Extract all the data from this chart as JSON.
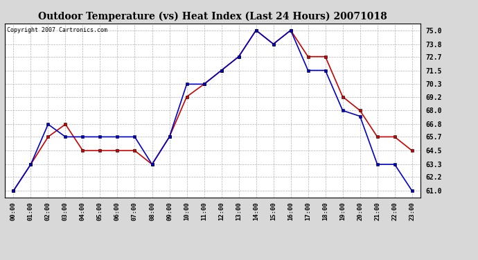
{
  "title": "Outdoor Temperature (vs) Heat Index (Last 24 Hours) 20071018",
  "copyright": "Copyright 2007 Cartronics.com",
  "x_labels": [
    "00:00",
    "01:00",
    "02:00",
    "03:00",
    "04:00",
    "05:00",
    "06:00",
    "07:00",
    "08:00",
    "09:00",
    "10:00",
    "11:00",
    "12:00",
    "13:00",
    "14:00",
    "15:00",
    "16:00",
    "17:00",
    "18:00",
    "19:00",
    "20:00",
    "21:00",
    "22:00",
    "23:00"
  ],
  "temp_data": [
    61.0,
    63.3,
    65.7,
    66.8,
    64.5,
    64.5,
    64.5,
    64.5,
    63.3,
    65.7,
    69.2,
    70.3,
    71.5,
    72.7,
    75.0,
    73.8,
    75.0,
    72.7,
    72.7,
    69.2,
    68.0,
    65.7,
    65.7,
    64.5
  ],
  "heat_data": [
    61.0,
    63.3,
    66.8,
    65.7,
    65.7,
    65.7,
    65.7,
    65.7,
    63.3,
    65.7,
    70.3,
    70.3,
    71.5,
    72.7,
    75.0,
    73.8,
    75.0,
    71.5,
    71.5,
    68.0,
    67.5,
    63.3,
    63.3,
    61.0
  ],
  "temp_color": "#cc0000",
  "heat_color": "#0000cc",
  "y_ticks": [
    61.0,
    62.2,
    63.3,
    64.5,
    65.7,
    66.8,
    68.0,
    69.2,
    70.3,
    71.5,
    72.7,
    73.8,
    75.0
  ],
  "ylim": [
    60.4,
    75.6
  ],
  "bg_color": "#d8d8d8",
  "plot_bg": "#ffffff",
  "grid_color": "#aaaaaa"
}
